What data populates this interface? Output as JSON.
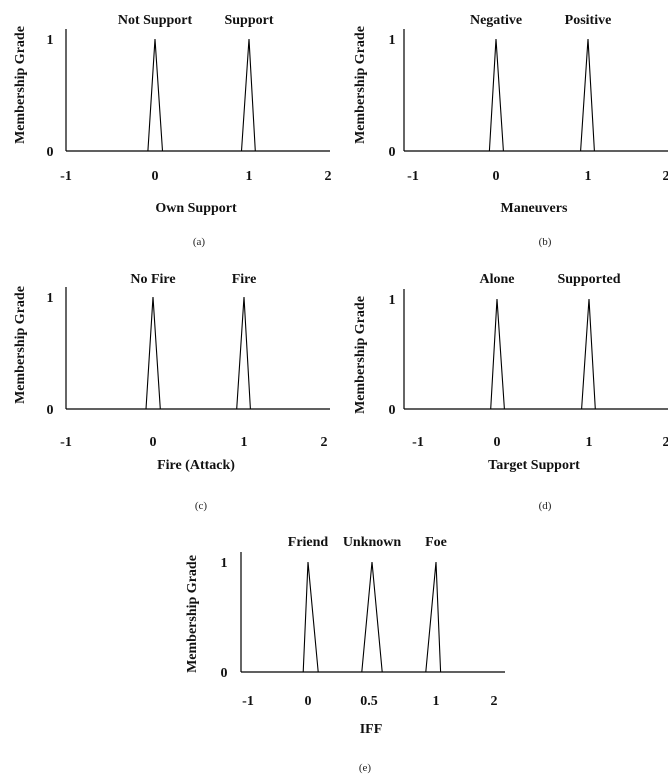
{
  "chart_data": [
    {
      "type": "line",
      "ylabel": "Membership Grade",
      "xlabel": "Own Support",
      "caption": "(a)",
      "xlim": [
        -1,
        2
      ],
      "ylim": [
        0,
        1
      ],
      "xticks": [
        "-1",
        "0",
        "1",
        "2"
      ],
      "yticks": [
        "0",
        "1"
      ],
      "series": [
        {
          "name": "Not Support",
          "x": [
            -0.08,
            0,
            0.08
          ],
          "y": [
            0,
            1,
            0
          ]
        },
        {
          "name": "Support",
          "x": [
            0.92,
            1,
            1.08
          ],
          "y": [
            0,
            1,
            0
          ]
        }
      ]
    },
    {
      "type": "line",
      "ylabel": "Membership Grade",
      "xlabel": "Maneuvers",
      "caption": "(b)",
      "xlim": [
        -1,
        2
      ],
      "ylim": [
        0,
        1
      ],
      "xticks": [
        "-1",
        "0",
        "1",
        "2"
      ],
      "yticks": [
        "0",
        "1"
      ],
      "series": [
        {
          "name": "Negative",
          "x": [
            -0.08,
            0,
            0.08
          ],
          "y": [
            0,
            1,
            0
          ]
        },
        {
          "name": "Positive",
          "x": [
            0.92,
            1,
            1.08
          ],
          "y": [
            0,
            1,
            0
          ]
        }
      ]
    },
    {
      "type": "line",
      "ylabel": "Membership Grade",
      "xlabel": "Fire (Attack)",
      "caption": "(c)",
      "xlim": [
        -1,
        2
      ],
      "ylim": [
        0,
        1
      ],
      "xticks": [
        "-1",
        "0",
        "1",
        "2"
      ],
      "yticks": [
        "0",
        "1"
      ],
      "series": [
        {
          "name": "No Fire",
          "x": [
            -0.08,
            0,
            0.08
          ],
          "y": [
            0,
            1,
            0
          ]
        },
        {
          "name": "Fire",
          "x": [
            0.92,
            1,
            1.08
          ],
          "y": [
            0,
            1,
            0
          ]
        }
      ]
    },
    {
      "type": "line",
      "ylabel": "Membership Grade",
      "xlabel": "Target Support",
      "caption": "(d)",
      "xlim": [
        -1,
        2
      ],
      "ylim": [
        0,
        1
      ],
      "xticks": [
        "-1",
        "0",
        "1",
        "2"
      ],
      "yticks": [
        "0",
        "1"
      ],
      "series": [
        {
          "name": "Alone",
          "x": [
            -0.08,
            0,
            0.08
          ],
          "y": [
            0,
            1,
            0
          ]
        },
        {
          "name": "Supported",
          "x": [
            0.92,
            1,
            1.08
          ],
          "y": [
            0,
            1,
            0
          ]
        }
      ]
    },
    {
      "type": "line",
      "ylabel": "Membership Grade",
      "xlabel": "IFF",
      "caption": "(e)",
      "xlim": [
        -1,
        2
      ],
      "ylim": [
        0,
        1
      ],
      "xticks": [
        "-1",
        "0",
        "0.5",
        "1",
        "2"
      ],
      "yticks": [
        "0",
        "1"
      ],
      "series": [
        {
          "name": "Friend",
          "x": [
            -0.08,
            0,
            0.08
          ],
          "y": [
            0,
            1,
            0
          ]
        },
        {
          "name": "Unknown",
          "x": [
            0.42,
            0.5,
            0.58
          ],
          "y": [
            0,
            1,
            0
          ]
        },
        {
          "name": "Foe",
          "x": [
            0.92,
            1,
            1.08
          ],
          "y": [
            0,
            1,
            0
          ]
        }
      ]
    }
  ]
}
